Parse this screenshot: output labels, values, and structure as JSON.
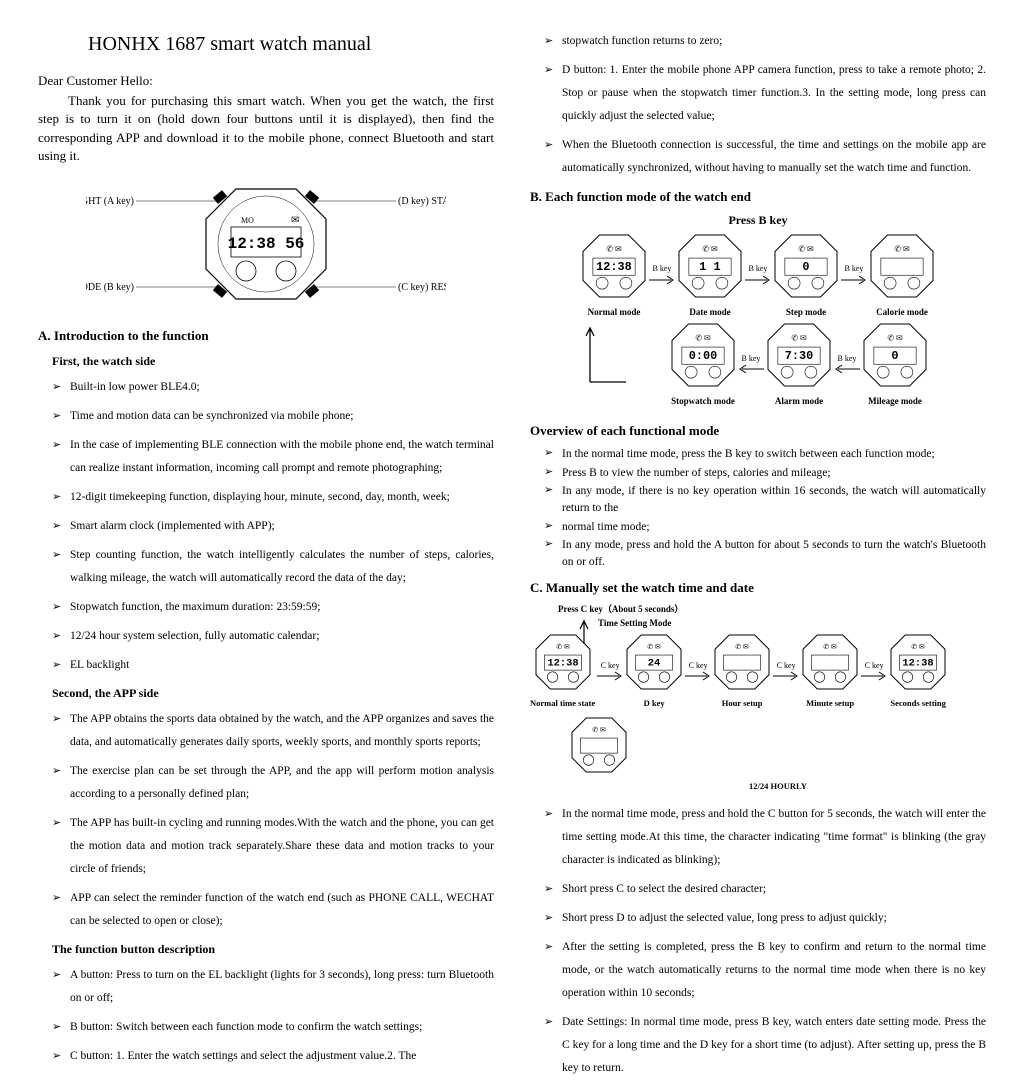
{
  "title": "HONHX 1687 smart watch manual",
  "salutation": "Dear Customer Hello:",
  "intro": "Thank you for purchasing this smart watch. When you get the watch, the first step is to turn it on (hold down four buttons until it is displayed), then find the corresponding APP and download it to the mobile phone, connect Bluetooth and start using it.",
  "watch_labels": {
    "tl": "LIGHT (A key)",
    "bl": "MODE (B key)",
    "tr": "(D key) START",
    "br": "(C key)  RESET"
  },
  "secA": "A. Introduction to the function",
  "subFirst": "First, the watch side",
  "firstList": [
    "Built-in low power BLE4.0;",
    "Time and motion data can be synchronized via mobile phone;",
    "In the case of implementing BLE connection with the mobile phone end, the watch terminal can realize instant information, incoming call prompt and remote photographing;",
    "12-digit timekeeping function, displaying hour, minute, second, day, month, week;",
    "Smart alarm clock (implemented with APP);",
    "Step counting function, the watch intelligently calculates the number of steps, calories, walking mileage, the watch will automatically record the data of the day;",
    "Stopwatch function, the maximum duration: 23:59:59;",
    "12/24 hour system selection, fully automatic calendar;",
    "EL backlight"
  ],
  "subSecond": "Second, the APP side",
  "secondList": [
    "The APP obtains the sports data obtained by the watch, and the APP organizes and saves the data, and automatically generates daily sports, weekly sports, and monthly sports reports;",
    "The exercise plan can be set through the APP, and the app will perform motion analysis according to a personally defined plan;",
    "The APP has built-in cycling and running modes.With the watch and the phone, you can get the motion data and motion track separately.Share these data and motion tracks to your circle of friends;",
    "APP can select the reminder function of the watch end (such as PHONE CALL, WECHAT can be selected to open or close);"
  ],
  "subButtons": "The function button description",
  "buttonList": [
    "A button: Press to turn on the EL backlight (lights for 3 seconds), long press: turn Bluetooth on or off;",
    "B button: Switch between each function mode to confirm the watch settings;",
    "C button: 1. Enter the watch settings and select the adjustment value.2. The"
  ],
  "col2TopList": [
    "stopwatch function returns to zero;",
    "D button: 1. Enter the mobile phone APP camera function, press to take a remote photo; 2. Stop or pause when the stopwatch timer function.3. In the setting mode, long press can quickly adjust the selected value;",
    "When the Bluetooth connection is successful, the time and settings on the mobile app are automatically synchronized, without having to manually set the watch time and function."
  ],
  "secB": "B. Each function mode of the watch end",
  "pressB": "Press B key",
  "modesRow1": [
    {
      "lbl": "Normal mode",
      "disp": "12:38"
    },
    {
      "lbl": "Date mode",
      "disp": "1 1"
    },
    {
      "lbl": "Step mode",
      "disp": "0"
    },
    {
      "lbl": "Calorie mode",
      "disp": ""
    }
  ],
  "modesRow2": [
    {
      "lbl": "Stopwatch mode",
      "disp": "0:00"
    },
    {
      "lbl": "Alarm mode",
      "disp": "7:30"
    },
    {
      "lbl": "Mileage mode",
      "disp": "0"
    }
  ],
  "bkey": "B key",
  "secOverview": "Overview of each functional mode",
  "overviewList": [
    "In the normal time mode, press the B key to switch between each function mode;",
    "Press B to view the number of steps, calories and mileage;",
    "In any mode, if there is no key operation within 16 seconds, the watch will automatically return to the",
    "normal time mode;",
    "In any mode, press and hold the A button for about 5 seconds to turn the watch's Bluetooth on or off."
  ],
  "secC": "C. Manually set the watch time and date",
  "pressC": "Press C key（About 5 seconds）",
  "timeSettingMode": "Time Setting Mode",
  "timeRow": [
    {
      "lbl": "Normal time state",
      "disp": "12:38"
    },
    {
      "lbl": "D key",
      "disp": "24"
    },
    {
      "lbl": "Hour setup",
      "disp": ""
    },
    {
      "lbl": "Minute setup",
      "disp": ""
    },
    {
      "lbl": "Seconds setting",
      "disp": "12:38"
    }
  ],
  "ckey": "C key",
  "hourly": "12/24 HOURLY",
  "cList": [
    "In the normal time mode, press and hold the C button for 5 seconds, the watch will enter the time setting mode.At this time, the character indicating \"time format\" is blinking (the gray character is indicated as blinking);",
    "Short press C to select the desired character;",
    "Short press D to adjust the selected value, long press to adjust quickly;",
    "After the setting is completed, press the B key to confirm and return to the normal time mode, or the watch automatically returns to the normal time mode when there is no key operation within 10 seconds;",
    "Date Settings: In normal time mode, press B key, watch enters date setting mode. Press the C key for a long time and the D key for a short time (to adjust). After setting up, press the B key to return."
  ],
  "colors": {
    "text": "#000000",
    "bg": "#ffffff"
  }
}
